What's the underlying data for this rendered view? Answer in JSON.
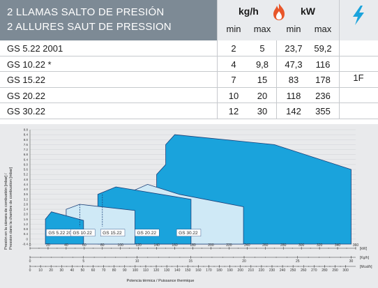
{
  "table": {
    "title_es": "2 LLAMAS SALTO DE PRESIÓN",
    "title_fr": "2 ALLURES SAUT DE PRESSION",
    "fuel_unit": "kg/h",
    "power_unit": "kW",
    "min": "min",
    "max": "max",
    "icons": {
      "fuel": "flame-icon",
      "electric": "lightning-bolt-icon"
    },
    "phase": "1F",
    "rows": [
      {
        "model": "GS 5.22 2001",
        "kgh_min": "2",
        "kgh_max": "5",
        "kw_min": "23,7",
        "kw_max": "59,2"
      },
      {
        "model": "GS 10.22 *",
        "kgh_min": "4",
        "kgh_max": "9,8",
        "kw_min": "47,3",
        "kw_max": "116"
      },
      {
        "model": "GS 15.22",
        "kgh_min": "7",
        "kgh_max": "15",
        "kw_min": "83",
        "kw_max": "178"
      },
      {
        "model": "GS 20.22",
        "kgh_min": "10",
        "kgh_max": "20",
        "kw_min": "118",
        "kw_max": "236"
      },
      {
        "model": "GS 30.22",
        "kgh_min": "12",
        "kgh_max": "30",
        "kw_min": "142",
        "kw_max": "355"
      }
    ],
    "colors": {
      "header": "#7d8a95",
      "header_light": "#e9ebee",
      "flame": "#e8562a",
      "bolt": "#1aa3dc"
    }
  },
  "chart_data": {
    "type": "area",
    "ylabel_es": "Presión en la cámara de combustión [mbar] /",
    "ylabel_fr": "Pression dans la chambre de combustion [mbar]",
    "xlabel": "Potencia térmica / Puissance thermique",
    "y_ticks": [
      "-0.4",
      "0",
      "0.4",
      "0.8",
      "1.2",
      "1.6",
      "2.0",
      "2.4",
      "2.8",
      "3.2",
      "3.6",
      "4.0",
      "4.4",
      "4.8",
      "5.2",
      "5.6",
      "6.0",
      "6.4",
      "6.8",
      "7.2",
      "7.6",
      "8.0",
      "8.4",
      "8.8"
    ],
    "ylim": [
      -0.4,
      8.8
    ],
    "kw_ticks": [
      "0",
      "20",
      "40",
      "60",
      "80",
      "100",
      "120",
      "140",
      "160",
      "180",
      "200",
      "220",
      "240",
      "260",
      "280",
      "300",
      "320",
      "340",
      "360"
    ],
    "kw_unit": "[kW]",
    "kgh_ticks": [
      "0",
      "5",
      "10",
      "15",
      "20",
      "25",
      "30"
    ],
    "kgh_unit": "[Kg/h]",
    "mcal_ticks": [
      "0",
      "10",
      "20",
      "30",
      "40",
      "50",
      "60",
      "70",
      "80",
      "90",
      "100",
      "110",
      "120",
      "130",
      "140",
      "150",
      "160",
      "170",
      "180",
      "190",
      "200",
      "210",
      "220",
      "230",
      "240",
      "250",
      "260",
      "270",
      "280",
      "290",
      "300"
    ],
    "mcal_unit": "[Mcal/h]",
    "xlim_kw": [
      0,
      360
    ],
    "series": [
      {
        "name": "GS 5.22 2001",
        "points": [
          [
            17,
            -0.4
          ],
          [
            17,
            1.6
          ],
          [
            23.7,
            2.2
          ],
          [
            59.2,
            1.5
          ],
          [
            59.2,
            -0.4
          ]
        ]
      },
      {
        "name": "GS 10.22",
        "points": [
          [
            40,
            -0.4
          ],
          [
            40,
            2.4
          ],
          [
            55,
            2.8
          ],
          [
            116,
            2.3
          ],
          [
            116,
            -0.4
          ]
        ]
      },
      {
        "name": "GS 15.22",
        "points": [
          [
            75,
            -0.4
          ],
          [
            75,
            3.6
          ],
          [
            95,
            4.2
          ],
          [
            178,
            3.2
          ],
          [
            178,
            -0.4
          ]
        ]
      },
      {
        "name": "GS 20.22",
        "points": [
          [
            105,
            -0.4
          ],
          [
            105,
            3.6
          ],
          [
            130,
            4.4
          ],
          [
            165,
            3.6
          ],
          [
            236,
            2.6
          ],
          [
            236,
            -0.4
          ]
        ]
      },
      {
        "name": "GS 30.22",
        "points": [
          [
            140,
            -0.4
          ],
          [
            140,
            5.2
          ],
          [
            150,
            6.0
          ],
          [
            150,
            7.6
          ],
          [
            160,
            8.4
          ],
          [
            270,
            7.6
          ],
          [
            355,
            5.6
          ],
          [
            355,
            -0.4
          ]
        ]
      }
    ],
    "colors": {
      "fill_dark": "#1aa3dc",
      "fill_light": "#cfe9f6",
      "stroke": "#1b3f78"
    }
  }
}
